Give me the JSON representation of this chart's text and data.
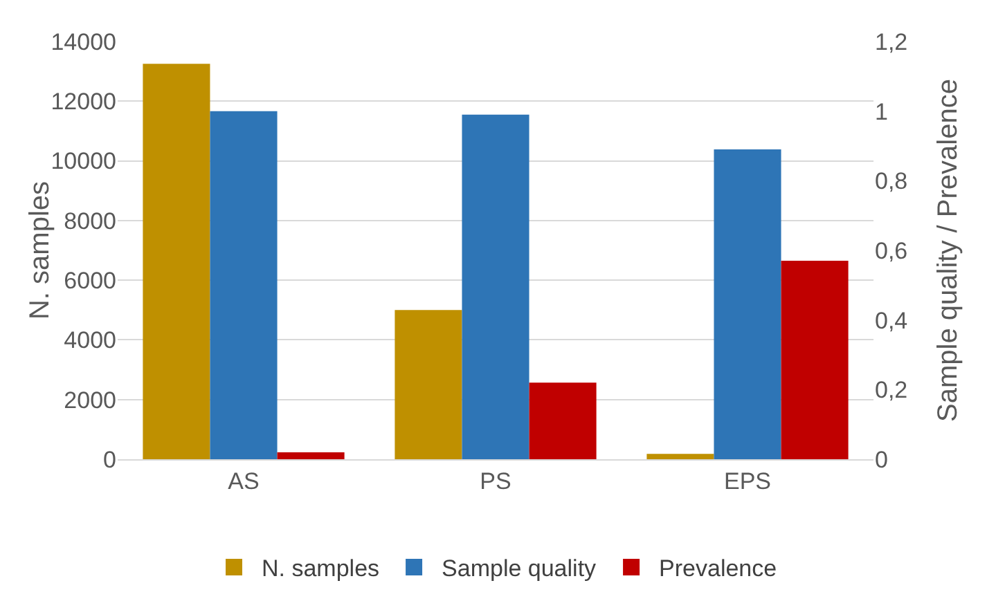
{
  "chart_data": {
    "type": "bar",
    "categories": [
      "AS",
      "PS",
      "EPS"
    ],
    "ylabel": "N. samples",
    "y2label": "Sample quality / Prevalence",
    "series": [
      {
        "name": "N. samples",
        "color": "#bf9000",
        "values": [
          13250,
          5000,
          180
        ]
      },
      {
        "name": "Sample quality",
        "color": "#2e75b6",
        "values": [
          1.0,
          0.99,
          0.89
        ],
        "axis": "y2"
      },
      {
        "name": "Prevalence",
        "color": "#c00000",
        "values": [
          0.02,
          0.22,
          0.57
        ],
        "axis": "y2"
      }
    ],
    "ylim": [
      0,
      14000
    ],
    "yticks": [
      0,
      2000,
      4000,
      6000,
      8000,
      10000,
      12000,
      14000
    ],
    "y2lim": [
      0,
      1.2
    ],
    "y2ticks": [
      0,
      {
        "value": 0.2,
        "label": "0,2"
      },
      {
        "value": 0.4,
        "label": "0,4"
      },
      {
        "value": 0.6,
        "label": "0,6"
      },
      {
        "value": 0.8,
        "label": "0,8"
      },
      1,
      {
        "value": 1.2,
        "label": "1,2"
      }
    ],
    "grid": "y",
    "legend": "bottom"
  }
}
